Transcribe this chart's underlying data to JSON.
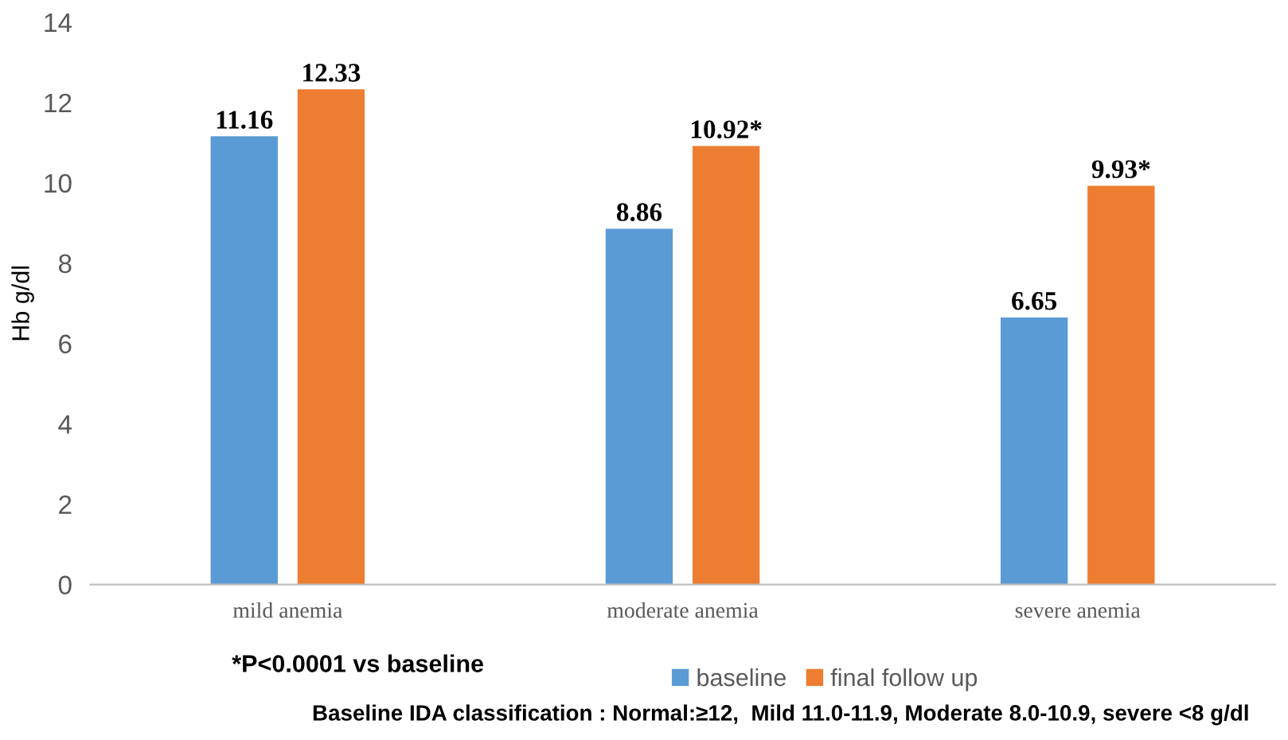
{
  "chart_data": {
    "type": "bar",
    "ylabel": "Hb g/dl",
    "categories": [
      "mild anemia",
      "moderate anemia",
      "severe anemia"
    ],
    "series": [
      {
        "name": "baseline",
        "color": "#5b9bd5",
        "values": [
          11.16,
          8.86,
          6.65
        ],
        "value_labels": [
          "11.16",
          "8.86",
          "6.65"
        ]
      },
      {
        "name": "final follow up",
        "color": "#ed7d31",
        "values": [
          12.33,
          10.92,
          9.93
        ],
        "value_labels": [
          "12.33",
          "10.92*",
          "9.93*"
        ]
      }
    ],
    "ylim": [
      0,
      14
    ],
    "yticks": [
      0,
      2,
      4,
      6,
      8,
      10,
      12,
      14
    ],
    "grid": false,
    "legend": "bottom",
    "annotations": [
      "*P<0.0001 vs baseline",
      "Baseline IDA classification : Normal:≥12,  Mild 11.0-11.9, Moderate 8.0-10.9, severe <8 g/dl"
    ]
  }
}
